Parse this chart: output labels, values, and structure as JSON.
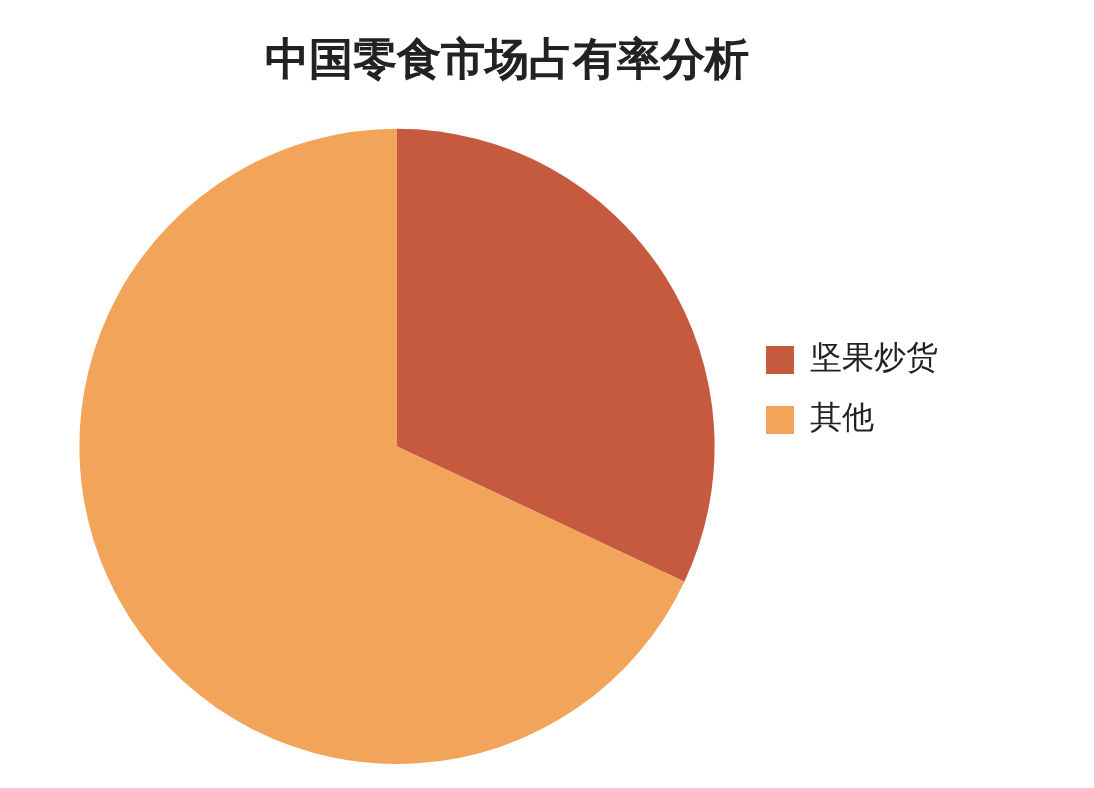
{
  "chart_data": {
    "type": "pie",
    "title": "中国零食市场占有率分析",
    "categories": [
      "坚果炒货",
      "其他"
    ],
    "values": [
      32,
      68
    ],
    "colors": [
      "#c65a3f",
      "#f2a45a"
    ],
    "legend": "right"
  }
}
